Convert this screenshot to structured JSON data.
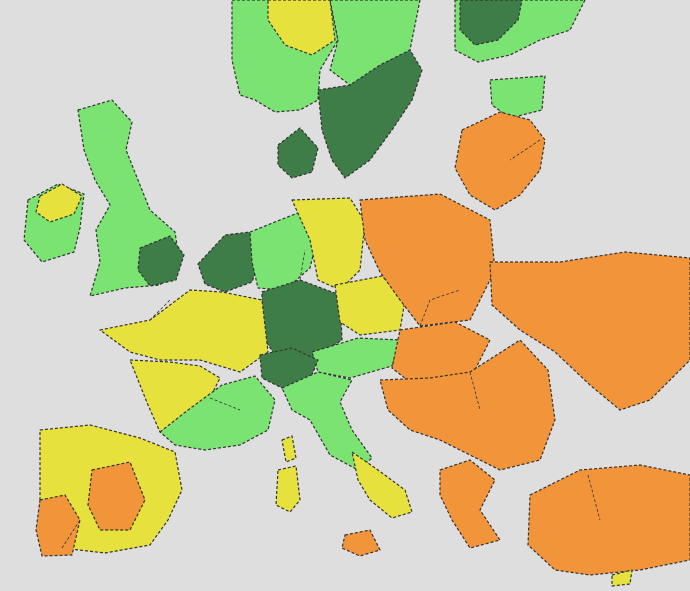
{
  "map": {
    "background": "#dedede",
    "border_color": "#333333",
    "legend_colors": {
      "dark_green": "#3f7d48",
      "light_green": "#7be372",
      "yellow": "#e6e13c",
      "orange": "#f2953a"
    },
    "regions": [
      {
        "name": "norway",
        "category": "light_green"
      },
      {
        "name": "norway-inner",
        "category": "yellow"
      },
      {
        "name": "sweden",
        "category": "dark_green"
      },
      {
        "name": "sweden-north",
        "category": "light_green"
      },
      {
        "name": "finland",
        "category": "light_green"
      },
      {
        "name": "finland-east",
        "category": "dark_green"
      },
      {
        "name": "baltic-states",
        "category": "orange"
      },
      {
        "name": "russia-enclave",
        "category": "light_green"
      },
      {
        "name": "ireland",
        "category": "light_green"
      },
      {
        "name": "northern-ireland",
        "category": "yellow"
      },
      {
        "name": "great-britain",
        "category": "light_green"
      },
      {
        "name": "london-east-england",
        "category": "dark_green"
      },
      {
        "name": "denmark",
        "category": "dark_green"
      },
      {
        "name": "benelux-north",
        "category": "dark_green"
      },
      {
        "name": "germany-north",
        "category": "yellow"
      },
      {
        "name": "germany-west",
        "category": "light_green"
      },
      {
        "name": "germany-south",
        "category": "dark_green"
      },
      {
        "name": "czechia",
        "category": "yellow"
      },
      {
        "name": "austria",
        "category": "light_green"
      },
      {
        "name": "poland",
        "category": "orange"
      },
      {
        "name": "slovakia-hungary",
        "category": "orange"
      },
      {
        "name": "romania-balkans",
        "category": "orange"
      },
      {
        "name": "ukraine-belarus",
        "category": "orange"
      },
      {
        "name": "france-north",
        "category": "yellow"
      },
      {
        "name": "france-west",
        "category": "yellow"
      },
      {
        "name": "france-south",
        "category": "light_green"
      },
      {
        "name": "switzerland",
        "category": "dark_green"
      },
      {
        "name": "italy-north",
        "category": "light_green"
      },
      {
        "name": "italy-south",
        "category": "yellow"
      },
      {
        "name": "spain",
        "category": "yellow"
      },
      {
        "name": "spain-south",
        "category": "orange"
      },
      {
        "name": "portugal",
        "category": "orange"
      },
      {
        "name": "greece",
        "category": "orange"
      },
      {
        "name": "turkey",
        "category": "orange"
      },
      {
        "name": "sardinia",
        "category": "yellow"
      },
      {
        "name": "corsica",
        "category": "yellow"
      },
      {
        "name": "sicily",
        "category": "orange"
      },
      {
        "name": "cyprus",
        "category": "yellow"
      }
    ]
  }
}
